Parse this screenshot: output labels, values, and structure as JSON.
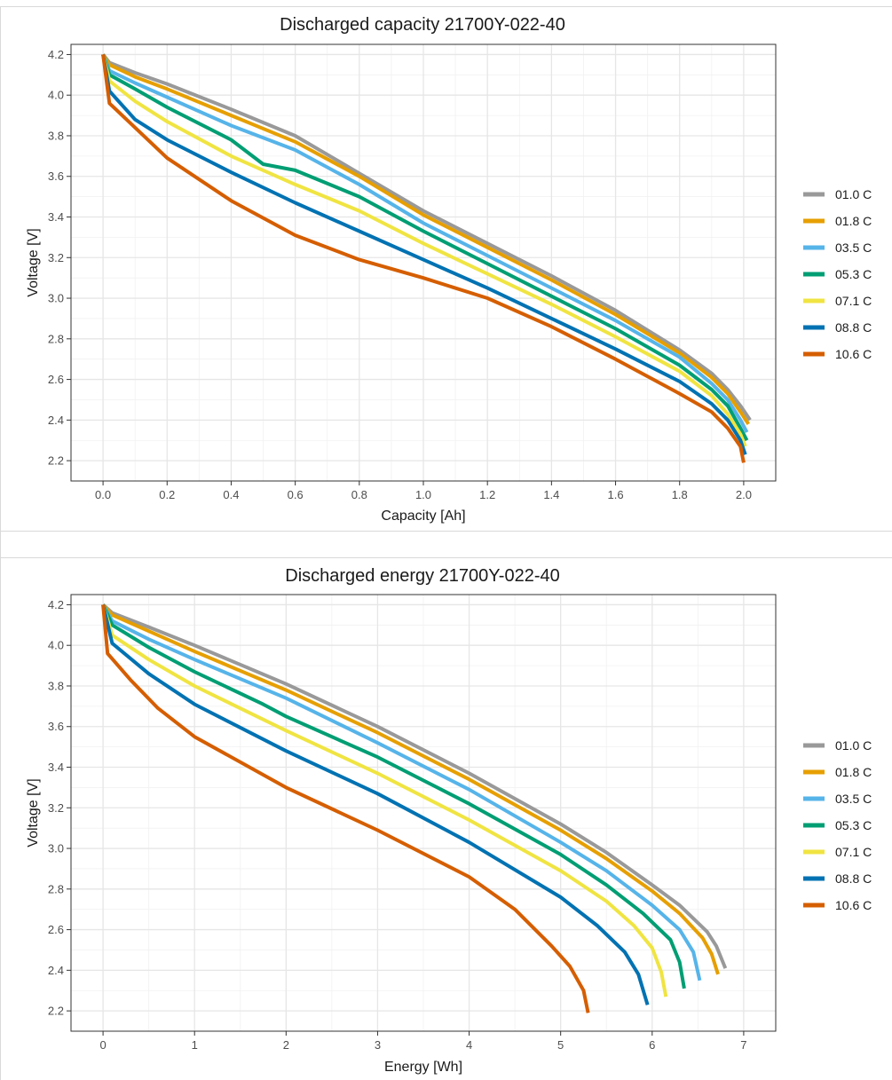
{
  "chart_data": [
    {
      "type": "line",
      "title": "Discharged capacity 21700Y-022-40",
      "xlabel": "Capacity [Ah]",
      "ylabel": "Voltage [V]",
      "xlim": [
        -0.1,
        2.1
      ],
      "ylim": [
        2.1,
        4.25
      ],
      "x_ticks": [
        "0.0",
        "0.2",
        "0.4",
        "0.6",
        "0.8",
        "1.0",
        "1.2",
        "1.4",
        "1.6",
        "1.8",
        "2.0"
      ],
      "y_ticks": [
        "2.2",
        "2.4",
        "2.6",
        "2.8",
        "3.0",
        "3.2",
        "3.4",
        "3.6",
        "3.8",
        "4.0",
        "4.2"
      ],
      "grid": true,
      "legend_position": "right",
      "series": [
        {
          "name": "01.0 C",
          "color": "#999999",
          "points": [
            [
              0,
              4.2
            ],
            [
              0.02,
              4.16
            ],
            [
              0.1,
              4.11
            ],
            [
              0.2,
              4.055
            ],
            [
              0.4,
              3.93
            ],
            [
              0.6,
              3.8
            ],
            [
              0.8,
              3.615
            ],
            [
              1.0,
              3.43
            ],
            [
              1.2,
              3.27
            ],
            [
              1.4,
              3.11
            ],
            [
              1.6,
              2.94
            ],
            [
              1.8,
              2.745
            ],
            [
              1.9,
              2.63
            ],
            [
              1.95,
              2.55
            ],
            [
              1.99,
              2.47
            ],
            [
              2.02,
              2.4
            ]
          ]
        },
        {
          "name": "01.8 C",
          "color": "#E69F00",
          "points": [
            [
              0,
              4.2
            ],
            [
              0.02,
              4.15
            ],
            [
              0.1,
              4.09
            ],
            [
              0.2,
              4.03
            ],
            [
              0.4,
              3.9
            ],
            [
              0.6,
              3.77
            ],
            [
              0.8,
              3.6
            ],
            [
              1.0,
              3.41
            ],
            [
              1.2,
              3.25
            ],
            [
              1.4,
              3.09
            ],
            [
              1.6,
              2.92
            ],
            [
              1.8,
              2.73
            ],
            [
              1.9,
              2.61
            ],
            [
              1.95,
              2.53
            ],
            [
              1.99,
              2.44
            ],
            [
              2.015,
              2.38
            ]
          ]
        },
        {
          "name": "03.5 C",
          "color": "#56B4E9",
          "points": [
            [
              0,
              4.2
            ],
            [
              0.02,
              4.12
            ],
            [
              0.1,
              4.06
            ],
            [
              0.2,
              3.99
            ],
            [
              0.4,
              3.85
            ],
            [
              0.6,
              3.73
            ],
            [
              0.8,
              3.56
            ],
            [
              1.0,
              3.37
            ],
            [
              1.2,
              3.21
            ],
            [
              1.4,
              3.05
            ],
            [
              1.6,
              2.89
            ],
            [
              1.8,
              2.71
            ],
            [
              1.9,
              2.58
            ],
            [
              1.95,
              2.5
            ],
            [
              1.99,
              2.4
            ],
            [
              2.01,
              2.34
            ]
          ]
        },
        {
          "name": "05.3 C",
          "color": "#009E73",
          "points": [
            [
              0,
              4.2
            ],
            [
              0.02,
              4.1
            ],
            [
              0.1,
              4.03
            ],
            [
              0.2,
              3.94
            ],
            [
              0.4,
              3.78
            ],
            [
              0.5,
              3.66
            ],
            [
              0.6,
              3.63
            ],
            [
              0.8,
              3.5
            ],
            [
              1.0,
              3.33
            ],
            [
              1.2,
              3.17
            ],
            [
              1.4,
              3.01
            ],
            [
              1.6,
              2.85
            ],
            [
              1.8,
              2.67
            ],
            [
              1.9,
              2.55
            ],
            [
              1.95,
              2.47
            ],
            [
              1.99,
              2.36
            ],
            [
              2.01,
              2.3
            ]
          ]
        },
        {
          "name": "07.1 C",
          "color": "#F0E442",
          "points": [
            [
              0,
              4.2
            ],
            [
              0.02,
              4.07
            ],
            [
              0.1,
              3.97
            ],
            [
              0.2,
              3.87
            ],
            [
              0.4,
              3.7
            ],
            [
              0.6,
              3.56
            ],
            [
              0.8,
              3.43
            ],
            [
              1.0,
              3.27
            ],
            [
              1.2,
              3.12
            ],
            [
              1.4,
              2.97
            ],
            [
              1.6,
              2.81
            ],
            [
              1.8,
              2.64
            ],
            [
              1.9,
              2.52
            ],
            [
              1.95,
              2.43
            ],
            [
              1.99,
              2.33
            ],
            [
              2.005,
              2.27
            ]
          ]
        },
        {
          "name": "08.8 C",
          "color": "#0072B2",
          "points": [
            [
              0,
              4.2
            ],
            [
              0.02,
              4.02
            ],
            [
              0.1,
              3.88
            ],
            [
              0.2,
              3.78
            ],
            [
              0.4,
              3.62
            ],
            [
              0.6,
              3.47
            ],
            [
              0.8,
              3.33
            ],
            [
              1.0,
              3.19
            ],
            [
              1.2,
              3.05
            ],
            [
              1.4,
              2.9
            ],
            [
              1.6,
              2.75
            ],
            [
              1.8,
              2.59
            ],
            [
              1.9,
              2.48
            ],
            [
              1.95,
              2.4
            ],
            [
              1.99,
              2.3
            ],
            [
              2.005,
              2.23
            ]
          ]
        },
        {
          "name": "10.6 C",
          "color": "#D55E00",
          "points": [
            [
              0,
              4.2
            ],
            [
              0.02,
              3.96
            ],
            [
              0.1,
              3.84
            ],
            [
              0.2,
              3.69
            ],
            [
              0.4,
              3.48
            ],
            [
              0.6,
              3.31
            ],
            [
              0.8,
              3.19
            ],
            [
              1.0,
              3.1
            ],
            [
              1.2,
              3.0
            ],
            [
              1.4,
              2.86
            ],
            [
              1.6,
              2.7
            ],
            [
              1.8,
              2.53
            ],
            [
              1.9,
              2.44
            ],
            [
              1.95,
              2.36
            ],
            [
              1.99,
              2.27
            ],
            [
              2.0,
              2.19
            ]
          ]
        }
      ]
    },
    {
      "type": "line",
      "title": "Discharged energy 21700Y-022-40",
      "xlabel": "Energy [Wh]",
      "ylabel": "Voltage [V]",
      "xlim": [
        -0.35,
        7.35
      ],
      "ylim": [
        2.1,
        4.25
      ],
      "x_ticks": [
        "0",
        "1",
        "2",
        "3",
        "4",
        "5",
        "6",
        "7"
      ],
      "y_ticks": [
        "2.2",
        "2.4",
        "2.6",
        "2.8",
        "3.0",
        "3.2",
        "3.4",
        "3.6",
        "3.8",
        "4.0",
        "4.2"
      ],
      "grid": true,
      "legend_position": "right",
      "series": [
        {
          "name": "01.0 C",
          "color": "#999999",
          "points": [
            [
              0,
              4.2
            ],
            [
              0.1,
              4.16
            ],
            [
              0.5,
              4.09
            ],
            [
              1.0,
              4.0
            ],
            [
              2.0,
              3.81
            ],
            [
              3.0,
              3.6
            ],
            [
              4.0,
              3.37
            ],
            [
              5.0,
              3.12
            ],
            [
              5.5,
              2.98
            ],
            [
              6.0,
              2.82
            ],
            [
              6.3,
              2.72
            ],
            [
              6.6,
              2.59
            ],
            [
              6.7,
              2.52
            ],
            [
              6.8,
              2.41
            ]
          ]
        },
        {
          "name": "01.8 C",
          "color": "#E69F00",
          "points": [
            [
              0,
              4.2
            ],
            [
              0.1,
              4.15
            ],
            [
              0.5,
              4.07
            ],
            [
              1.0,
              3.97
            ],
            [
              2.0,
              3.78
            ],
            [
              3.0,
              3.57
            ],
            [
              4.0,
              3.34
            ],
            [
              5.0,
              3.09
            ],
            [
              5.5,
              2.95
            ],
            [
              6.0,
              2.79
            ],
            [
              6.3,
              2.68
            ],
            [
              6.55,
              2.56
            ],
            [
              6.65,
              2.48
            ],
            [
              6.72,
              2.38
            ]
          ]
        },
        {
          "name": "03.5 C",
          "color": "#56B4E9",
          "points": [
            [
              0,
              4.2
            ],
            [
              0.1,
              4.12
            ],
            [
              0.5,
              4.03
            ],
            [
              1.0,
              3.93
            ],
            [
              2.0,
              3.74
            ],
            [
              3.0,
              3.52
            ],
            [
              4.0,
              3.29
            ],
            [
              5.0,
              3.03
            ],
            [
              5.5,
              2.89
            ],
            [
              6.0,
              2.72
            ],
            [
              6.3,
              2.6
            ],
            [
              6.45,
              2.49
            ],
            [
              6.52,
              2.35
            ]
          ]
        },
        {
          "name": "05.3 C",
          "color": "#009E73",
          "points": [
            [
              0,
              4.2
            ],
            [
              0.1,
              4.1
            ],
            [
              0.5,
              3.99
            ],
            [
              1.0,
              3.87
            ],
            [
              1.75,
              3.71
            ],
            [
              2.0,
              3.65
            ],
            [
              3.0,
              3.45
            ],
            [
              4.0,
              3.22
            ],
            [
              5.0,
              2.97
            ],
            [
              5.5,
              2.82
            ],
            [
              5.9,
              2.68
            ],
            [
              6.2,
              2.55
            ],
            [
              6.3,
              2.44
            ],
            [
              6.35,
              2.31
            ]
          ]
        },
        {
          "name": "07.1 C",
          "color": "#F0E442",
          "points": [
            [
              0,
              4.2
            ],
            [
              0.1,
              4.05
            ],
            [
              0.5,
              3.93
            ],
            [
              1.0,
              3.8
            ],
            [
              2.0,
              3.58
            ],
            [
              3.0,
              3.37
            ],
            [
              4.0,
              3.14
            ],
            [
              5.0,
              2.89
            ],
            [
              5.5,
              2.74
            ],
            [
              5.8,
              2.62
            ],
            [
              6.0,
              2.51
            ],
            [
              6.1,
              2.39
            ],
            [
              6.15,
              2.27
            ]
          ]
        },
        {
          "name": "08.8 C",
          "color": "#0072B2",
          "points": [
            [
              0,
              4.2
            ],
            [
              0.1,
              4.01
            ],
            [
              0.5,
              3.86
            ],
            [
              1.0,
              3.71
            ],
            [
              2.0,
              3.48
            ],
            [
              3.0,
              3.27
            ],
            [
              4.0,
              3.03
            ],
            [
              5.0,
              2.76
            ],
            [
              5.4,
              2.62
            ],
            [
              5.7,
              2.49
            ],
            [
              5.85,
              2.38
            ],
            [
              5.95,
              2.23
            ]
          ]
        },
        {
          "name": "10.6 C",
          "color": "#D55E00",
          "points": [
            [
              0,
              4.2
            ],
            [
              0.05,
              3.96
            ],
            [
              0.3,
              3.83
            ],
            [
              0.6,
              3.69
            ],
            [
              1.0,
              3.55
            ],
            [
              2.0,
              3.3
            ],
            [
              3.0,
              3.09
            ],
            [
              4.0,
              2.86
            ],
            [
              4.5,
              2.7
            ],
            [
              4.9,
              2.52
            ],
            [
              5.1,
              2.42
            ],
            [
              5.25,
              2.3
            ],
            [
              5.3,
              2.19
            ]
          ]
        }
      ]
    }
  ]
}
